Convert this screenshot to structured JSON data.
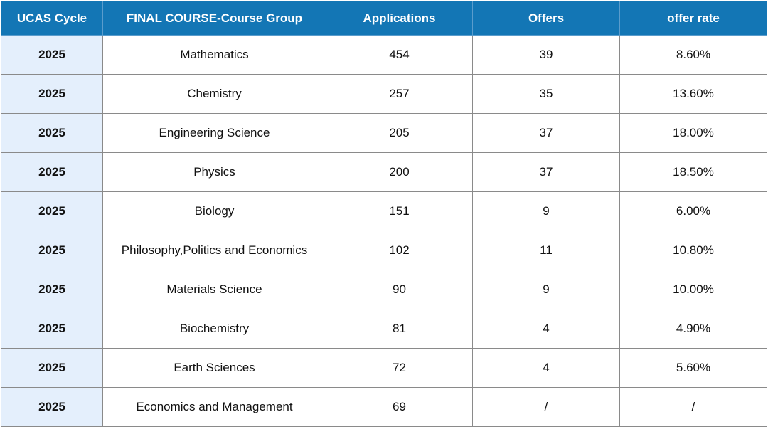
{
  "table": {
    "headers": [
      "UCAS Cycle",
      "FINAL COURSE-Course Group",
      "Applications",
      "Offers",
      "offer rate"
    ],
    "rows": [
      [
        "2025",
        "Mathematics",
        "454",
        "39",
        "8.60%"
      ],
      [
        "2025",
        "Chemistry",
        "257",
        "35",
        "13.60%"
      ],
      [
        "2025",
        "Engineering Science",
        "205",
        "37",
        "18.00%"
      ],
      [
        "2025",
        "Physics",
        "200",
        "37",
        "18.50%"
      ],
      [
        "2025",
        "Biology",
        "151",
        "9",
        "6.00%"
      ],
      [
        "2025",
        "Philosophy,Politics and Economics",
        "102",
        "11",
        "10.80%"
      ],
      [
        "2025",
        "Materials Science",
        "90",
        "9",
        "10.00%"
      ],
      [
        "2025",
        "Biochemistry",
        "81",
        "4",
        "4.90%"
      ],
      [
        "2025",
        "Earth Sciences",
        "72",
        "4",
        "5.60%"
      ],
      [
        "2025",
        "Economics and Management",
        "69",
        "/",
        "/"
      ]
    ]
  },
  "colors": {
    "header_bg": "#1376b5",
    "header_text": "#ffffff",
    "year_cell_bg": "#e4effc",
    "border": "#8a8a8a"
  }
}
